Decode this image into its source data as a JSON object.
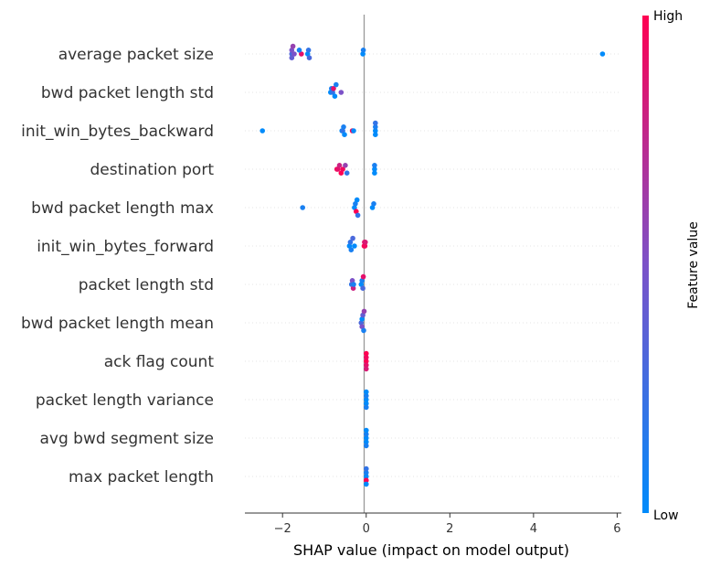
{
  "chart_data": {
    "type": "scatter",
    "subtype": "shap-beeswarm",
    "xlabel": "SHAP value (impact on model output)",
    "xlim": [
      -2.9,
      6.1
    ],
    "xticks": [
      -2,
      0,
      2,
      4,
      6
    ],
    "xtick_labels": [
      "−2",
      "0",
      "2",
      "4",
      "6"
    ],
    "colorbar": {
      "label": "Feature value",
      "high": "High",
      "low": "Low",
      "low_color": "#008bfb",
      "high_color": "#ff0052"
    },
    "zero_line_color": "#999999",
    "features": [
      {
        "name": "average packet size",
        "points": [
          {
            "x": -1.78,
            "v": 0.3
          },
          {
            "x": -1.78,
            "v": 0.5
          },
          {
            "x": -1.78,
            "v": 0.4
          },
          {
            "x": -1.75,
            "v": 0.6
          },
          {
            "x": -1.72,
            "v": 0.5
          },
          {
            "x": -1.55,
            "v": 0.9
          },
          {
            "x": -1.6,
            "v": 0.1
          },
          {
            "x": -1.4,
            "v": 0.0
          },
          {
            "x": -1.38,
            "v": 0.2
          },
          {
            "x": -1.36,
            "v": 0.3
          },
          {
            "x": -0.08,
            "v": 0.0
          },
          {
            "x": -0.07,
            "v": 0.1
          },
          {
            "x": 5.65,
            "v": 0.0
          }
        ]
      },
      {
        "name": "bwd packet length std",
        "points": [
          {
            "x": -0.85,
            "v": 0.0
          },
          {
            "x": -0.83,
            "v": 0.1
          },
          {
            "x": -0.8,
            "v": 0.2
          },
          {
            "x": -0.78,
            "v": 0.9
          },
          {
            "x": -0.75,
            "v": 0.0
          },
          {
            "x": -0.72,
            "v": 0.1
          },
          {
            "x": -0.6,
            "v": 0.5
          }
        ]
      },
      {
        "name": "init_win_bytes_backward",
        "points": [
          {
            "x": -2.48,
            "v": 0.0
          },
          {
            "x": -0.58,
            "v": 0.0
          },
          {
            "x": -0.56,
            "v": 0.2
          },
          {
            "x": -0.54,
            "v": 0.1
          },
          {
            "x": -0.52,
            "v": 0.0
          },
          {
            "x": -0.33,
            "v": 1.0
          },
          {
            "x": -0.3,
            "v": 0.0
          },
          {
            "x": 0.22,
            "v": 0.0
          },
          {
            "x": 0.22,
            "v": 0.1
          },
          {
            "x": 0.22,
            "v": 0.0
          },
          {
            "x": 0.22,
            "v": 0.2
          }
        ]
      },
      {
        "name": "destination port",
        "points": [
          {
            "x": -0.7,
            "v": 1.0
          },
          {
            "x": -0.68,
            "v": 0.9
          },
          {
            "x": -0.64,
            "v": 0.8
          },
          {
            "x": -0.6,
            "v": 1.0
          },
          {
            "x": -0.56,
            "v": 0.95
          },
          {
            "x": -0.5,
            "v": 0.6
          },
          {
            "x": -0.46,
            "v": 0.2
          },
          {
            "x": 0.2,
            "v": 0.0
          },
          {
            "x": 0.2,
            "v": 0.1
          },
          {
            "x": 0.2,
            "v": 0.0
          }
        ]
      },
      {
        "name": "bwd packet length max",
        "points": [
          {
            "x": -1.52,
            "v": 0.1
          },
          {
            "x": -0.28,
            "v": 0.0
          },
          {
            "x": -0.26,
            "v": 0.1
          },
          {
            "x": -0.24,
            "v": 1.0
          },
          {
            "x": -0.22,
            "v": 0.0
          },
          {
            "x": -0.2,
            "v": 0.2
          },
          {
            "x": 0.15,
            "v": 0.0
          },
          {
            "x": 0.18,
            "v": 0.1
          }
        ]
      },
      {
        "name": "init_win_bytes_forward",
        "points": [
          {
            "x": -0.4,
            "v": 0.0
          },
          {
            "x": -0.38,
            "v": 0.2
          },
          {
            "x": -0.36,
            "v": 0.1
          },
          {
            "x": -0.32,
            "v": 0.3
          },
          {
            "x": -0.28,
            "v": 0.0
          },
          {
            "x": -0.05,
            "v": 1.0
          },
          {
            "x": -0.04,
            "v": 0.9
          },
          {
            "x": -0.03,
            "v": 0.95
          },
          {
            "x": -0.02,
            "v": 0.85
          }
        ]
      },
      {
        "name": "packet length std",
        "points": [
          {
            "x": -0.35,
            "v": 0.2
          },
          {
            "x": -0.33,
            "v": 0.5
          },
          {
            "x": -0.31,
            "v": 0.8
          },
          {
            "x": -0.3,
            "v": 0.1
          },
          {
            "x": -0.12,
            "v": 0.0
          },
          {
            "x": -0.1,
            "v": 0.1
          },
          {
            "x": -0.08,
            "v": 0.3
          },
          {
            "x": -0.07,
            "v": 0.9
          }
        ]
      },
      {
        "name": "bwd packet length mean",
        "points": [
          {
            "x": -0.12,
            "v": 0.3
          },
          {
            "x": -0.1,
            "v": 0.0
          },
          {
            "x": -0.1,
            "v": 0.5
          },
          {
            "x": -0.08,
            "v": 0.4
          },
          {
            "x": -0.06,
            "v": 0.1
          },
          {
            "x": -0.05,
            "v": 0.6
          }
        ]
      },
      {
        "name": "ack flag count",
        "points": [
          {
            "x": 0.0,
            "v": 1.0
          },
          {
            "x": 0.0,
            "v": 0.95
          },
          {
            "x": 0.0,
            "v": 0.9
          },
          {
            "x": 0.0,
            "v": 1.0
          },
          {
            "x": 0.0,
            "v": 0.85
          }
        ]
      },
      {
        "name": "packet length variance",
        "points": [
          {
            "x": 0.0,
            "v": 0.0
          },
          {
            "x": 0.0,
            "v": 0.1
          },
          {
            "x": 0.0,
            "v": 0.0
          },
          {
            "x": 0.0,
            "v": 0.0
          },
          {
            "x": 0.0,
            "v": 0.1
          }
        ]
      },
      {
        "name": "avg bwd segment size",
        "points": [
          {
            "x": 0.0,
            "v": 0.0
          },
          {
            "x": 0.0,
            "v": 0.1
          },
          {
            "x": 0.0,
            "v": 0.0
          },
          {
            "x": 0.0,
            "v": 0.0
          },
          {
            "x": 0.0,
            "v": 0.1
          }
        ]
      },
      {
        "name": "max packet length",
        "points": [
          {
            "x": 0.0,
            "v": 0.0
          },
          {
            "x": 0.0,
            "v": 0.1
          },
          {
            "x": 0.0,
            "v": 1.0
          },
          {
            "x": 0.0,
            "v": 0.2
          },
          {
            "x": 0.0,
            "v": 0.0
          }
        ]
      }
    ]
  }
}
